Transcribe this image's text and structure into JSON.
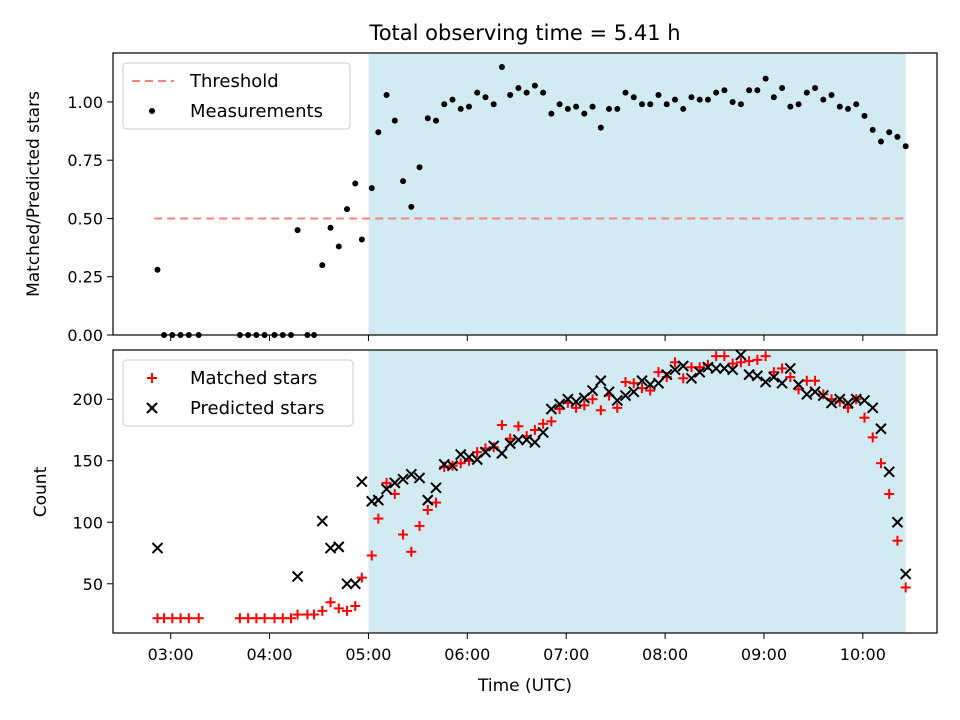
{
  "title": "Total observing time = 5.41 h",
  "xlabel": "Time (UTC)",
  "x_ticks": [
    "03:00",
    "04:00",
    "05:00",
    "06:00",
    "07:00",
    "08:00",
    "09:00",
    "10:00"
  ],
  "shaded_region": {
    "start": "05:00",
    "end": "10:26",
    "color": "#add8e6"
  },
  "chart_data": [
    {
      "type": "scatter",
      "ylabel": "Matched/Predicted stars",
      "ylim": [
        0,
        1.21
      ],
      "y_ticks": [
        "0.00",
        "0.25",
        "0.50",
        "0.75",
        "1.00"
      ],
      "legend_position": "top-left",
      "threshold": {
        "name": "Threshold",
        "value": 0.5,
        "x_start": "02:50",
        "x_end": "10:26",
        "color": "#ff8080",
        "style": "dashed"
      },
      "series": [
        {
          "name": "Measurements",
          "color": "#000000",
          "marker": "dot",
          "points": [
            [
              "02:52",
              0.28
            ],
            [
              "02:56",
              0.0
            ],
            [
              "03:01",
              0.0
            ],
            [
              "03:06",
              0.0
            ],
            [
              "03:11",
              0.0
            ],
            [
              "03:17",
              0.0
            ],
            [
              "03:42",
              0.0
            ],
            [
              "03:47",
              0.0
            ],
            [
              "03:52",
              0.0
            ],
            [
              "03:57",
              0.0
            ],
            [
              "04:03",
              0.0
            ],
            [
              "04:08",
              0.0
            ],
            [
              "04:13",
              0.0
            ],
            [
              "04:17",
              0.45
            ],
            [
              "04:23",
              0.0
            ],
            [
              "04:27",
              0.0
            ],
            [
              "04:32",
              0.3
            ],
            [
              "04:37",
              0.46
            ],
            [
              "04:42",
              0.38
            ],
            [
              "04:47",
              0.54
            ],
            [
              "04:52",
              0.65
            ],
            [
              "04:56",
              0.41
            ],
            [
              "05:02",
              0.63
            ],
            [
              "05:06",
              0.87
            ],
            [
              "05:11",
              1.03
            ],
            [
              "05:16",
              0.92
            ],
            [
              "05:21",
              0.66
            ],
            [
              "05:26",
              0.55
            ],
            [
              "05:31",
              0.72
            ],
            [
              "05:36",
              0.93
            ],
            [
              "05:41",
              0.92
            ],
            [
              "05:46",
              0.99
            ],
            [
              "05:51",
              1.01
            ],
            [
              "05:56",
              0.97
            ],
            [
              "06:01",
              0.98
            ],
            [
              "06:06",
              1.04
            ],
            [
              "06:11",
              1.02
            ],
            [
              "06:16",
              0.99
            ],
            [
              "06:21",
              1.15
            ],
            [
              "06:26",
              1.03
            ],
            [
              "06:31",
              1.06
            ],
            [
              "06:36",
              1.04
            ],
            [
              "06:41",
              1.07
            ],
            [
              "06:46",
              1.04
            ],
            [
              "06:51",
              0.95
            ],
            [
              "06:56",
              0.99
            ],
            [
              "07:01",
              0.97
            ],
            [
              "07:06",
              0.98
            ],
            [
              "07:11",
              0.95
            ],
            [
              "07:16",
              0.98
            ],
            [
              "07:21",
              0.89
            ],
            [
              "07:26",
              0.97
            ],
            [
              "07:31",
              0.97
            ],
            [
              "07:36",
              1.04
            ],
            [
              "07:41",
              1.02
            ],
            [
              "07:46",
              0.99
            ],
            [
              "07:51",
              0.99
            ],
            [
              "07:56",
              1.03
            ],
            [
              "08:01",
              0.99
            ],
            [
              "08:06",
              1.01
            ],
            [
              "08:11",
              0.97
            ],
            [
              "08:16",
              1.02
            ],
            [
              "08:21",
              1.01
            ],
            [
              "08:26",
              1.01
            ],
            [
              "08:31",
              1.04
            ],
            [
              "08:36",
              1.05
            ],
            [
              "08:41",
              1.0
            ],
            [
              "08:46",
              0.99
            ],
            [
              "08:51",
              1.05
            ],
            [
              "08:56",
              1.05
            ],
            [
              "09:01",
              1.1
            ],
            [
              "09:06",
              1.02
            ],
            [
              "09:11",
              1.06
            ],
            [
              "09:16",
              0.98
            ],
            [
              "09:21",
              0.99
            ],
            [
              "09:26",
              1.04
            ],
            [
              "09:31",
              1.06
            ],
            [
              "09:36",
              1.01
            ],
            [
              "09:41",
              1.03
            ],
            [
              "09:46",
              0.98
            ],
            [
              "09:51",
              0.97
            ],
            [
              "09:56",
              0.99
            ],
            [
              "10:01",
              0.94
            ],
            [
              "10:06",
              0.88
            ],
            [
              "10:11",
              0.83
            ],
            [
              "10:16",
              0.87
            ],
            [
              "10:21",
              0.85
            ],
            [
              "10:26",
              0.81
            ]
          ]
        }
      ]
    },
    {
      "type": "scatter",
      "ylabel": "Count",
      "ylim": [
        10,
        240
      ],
      "y_ticks": [
        "50",
        "100",
        "150",
        "200"
      ],
      "legend_position": "top-left",
      "series": [
        {
          "name": "Matched stars",
          "color": "#ff0000",
          "marker": "plus",
          "points": [
            [
              "02:52",
              22
            ],
            [
              "02:56",
              22
            ],
            [
              "03:01",
              22
            ],
            [
              "03:06",
              22
            ],
            [
              "03:11",
              22
            ],
            [
              "03:17",
              22
            ],
            [
              "03:42",
              22
            ],
            [
              "03:47",
              22
            ],
            [
              "03:52",
              22
            ],
            [
              "03:57",
              22
            ],
            [
              "04:03",
              22
            ],
            [
              "04:08",
              22
            ],
            [
              "04:13",
              22
            ],
            [
              "04:17",
              25
            ],
            [
              "04:23",
              25
            ],
            [
              "04:27",
              25
            ],
            [
              "04:32",
              28
            ],
            [
              "04:37",
              35
            ],
            [
              "04:42",
              30
            ],
            [
              "04:47",
              28
            ],
            [
              "04:52",
              32
            ],
            [
              "04:56",
              55
            ],
            [
              "05:02",
              73
            ],
            [
              "05:06",
              103
            ],
            [
              "05:11",
              132
            ],
            [
              "05:16",
              123
            ],
            [
              "05:21",
              90
            ],
            [
              "05:26",
              76
            ],
            [
              "05:31",
              97
            ],
            [
              "05:36",
              110
            ],
            [
              "05:41",
              116
            ],
            [
              "05:46",
              145
            ],
            [
              "05:51",
              146
            ],
            [
              "05:56",
              148
            ],
            [
              "06:01",
              150
            ],
            [
              "06:06",
              157
            ],
            [
              "06:11",
              160
            ],
            [
              "06:16",
              161
            ],
            [
              "06:21",
              179
            ],
            [
              "06:26",
              168
            ],
            [
              "06:31",
              178
            ],
            [
              "06:36",
              170
            ],
            [
              "06:41",
              175
            ],
            [
              "06:46",
              180
            ],
            [
              "06:51",
              182
            ],
            [
              "06:56",
              192
            ],
            [
              "07:01",
              197
            ],
            [
              "07:06",
              193
            ],
            [
              "07:11",
              195
            ],
            [
              "07:16",
              200
            ],
            [
              "07:21",
              191
            ],
            [
              "07:26",
              203
            ],
            [
              "07:31",
              193
            ],
            [
              "07:36",
              214
            ],
            [
              "07:41",
              213
            ],
            [
              "07:46",
              209
            ],
            [
              "07:51",
              207
            ],
            [
              "07:56",
              222
            ],
            [
              "08:01",
              218
            ],
            [
              "08:06",
              230
            ],
            [
              "08:11",
              217
            ],
            [
              "08:16",
              226
            ],
            [
              "08:21",
              226
            ],
            [
              "08:26",
              228
            ],
            [
              "08:31",
              235
            ],
            [
              "08:36",
              235
            ],
            [
              "08:41",
              229
            ],
            [
              "08:46",
              230
            ],
            [
              "08:51",
              231
            ],
            [
              "08:56",
              232
            ],
            [
              "09:01",
              235
            ],
            [
              "09:06",
              222
            ],
            [
              "09:11",
              225
            ],
            [
              "09:16",
              218
            ],
            [
              "09:21",
              208
            ],
            [
              "09:26",
              215
            ],
            [
              "09:31",
              215
            ],
            [
              "09:36",
              204
            ],
            [
              "09:41",
              200
            ],
            [
              "09:46",
              198
            ],
            [
              "09:51",
              193
            ],
            [
              "09:56",
              200
            ],
            [
              "10:01",
              185
            ],
            [
              "10:06",
              169
            ],
            [
              "10:11",
              148
            ],
            [
              "10:16",
              123
            ],
            [
              "10:21",
              85
            ],
            [
              "10:26",
              47
            ]
          ]
        },
        {
          "name": "Predicted stars",
          "color": "#000000",
          "marker": "x",
          "points": [
            [
              "02:52",
              79
            ],
            [
              "04:17",
              56
            ],
            [
              "04:32",
              101
            ],
            [
              "04:37",
              79
            ],
            [
              "04:42",
              80
            ],
            [
              "04:47",
              50
            ],
            [
              "04:52",
              50
            ],
            [
              "04:56",
              133
            ],
            [
              "05:02",
              117
            ],
            [
              "05:06",
              118
            ],
            [
              "05:11",
              127
            ],
            [
              "05:16",
              132
            ],
            [
              "05:21",
              135
            ],
            [
              "05:26",
              139
            ],
            [
              "05:31",
              136
            ],
            [
              "05:36",
              118
            ],
            [
              "05:41",
              128
            ],
            [
              "05:46",
              147
            ],
            [
              "05:51",
              146
            ],
            [
              "05:56",
              155
            ],
            [
              "06:01",
              153
            ],
            [
              "06:06",
              151
            ],
            [
              "06:11",
              157
            ],
            [
              "06:16",
              162
            ],
            [
              "06:21",
              156
            ],
            [
              "06:26",
              164
            ],
            [
              "06:31",
              167
            ],
            [
              "06:36",
              167
            ],
            [
              "06:41",
              165
            ],
            [
              "06:46",
              173
            ],
            [
              "06:51",
              192
            ],
            [
              "06:56",
              196
            ],
            [
              "07:01",
              200
            ],
            [
              "07:06",
              198
            ],
            [
              "07:11",
              201
            ],
            [
              "07:16",
              207
            ],
            [
              "07:21",
              215
            ],
            [
              "07:26",
              206
            ],
            [
              "07:31",
              199
            ],
            [
              "07:36",
              203
            ],
            [
              "07:41",
              206
            ],
            [
              "07:46",
              215
            ],
            [
              "07:51",
              212
            ],
            [
              "07:56",
              213
            ],
            [
              "08:01",
              220
            ],
            [
              "08:06",
              224
            ],
            [
              "08:11",
              227
            ],
            [
              "08:16",
              217
            ],
            [
              "08:21",
              222
            ],
            [
              "08:26",
              226
            ],
            [
              "08:31",
              225
            ],
            [
              "08:36",
              225
            ],
            [
              "08:41",
              224
            ],
            [
              "08:46",
              236
            ],
            [
              "08:51",
              220
            ],
            [
              "08:56",
              219
            ],
            [
              "09:01",
              214
            ],
            [
              "09:06",
              218
            ],
            [
              "09:11",
              213
            ],
            [
              "09:16",
              225
            ],
            [
              "09:21",
              212
            ],
            [
              "09:26",
              204
            ],
            [
              "09:31",
              206
            ],
            [
              "09:36",
              203
            ],
            [
              "09:41",
              197
            ],
            [
              "09:46",
              200
            ],
            [
              "09:51",
              197
            ],
            [
              "09:56",
              200
            ],
            [
              "10:01",
              199
            ],
            [
              "10:06",
              193
            ],
            [
              "10:11",
              176
            ],
            [
              "10:16",
              141
            ],
            [
              "10:21",
              100
            ],
            [
              "10:26",
              58
            ]
          ]
        }
      ]
    }
  ]
}
